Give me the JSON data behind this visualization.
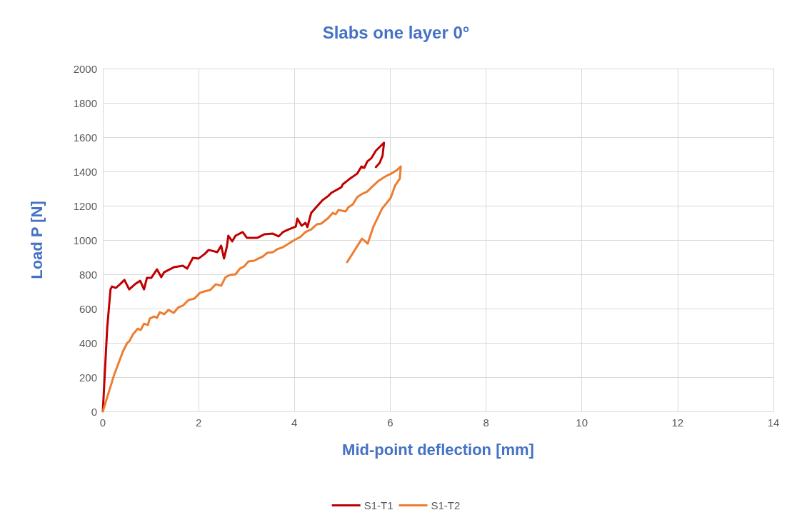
{
  "chart_data": {
    "type": "line",
    "title": "Slabs one layer 0°",
    "xlabel": "Mid-point deflection [mm]",
    "ylabel": "Load P [N]",
    "xlim": [
      0,
      14
    ],
    "xticks": [
      0,
      2,
      4,
      6,
      8,
      10,
      12,
      14
    ],
    "ylim": [
      0,
      2000
    ],
    "yticks": [
      0,
      200,
      400,
      600,
      800,
      1000,
      1200,
      1400,
      1600,
      1800,
      2000
    ],
    "grid": true,
    "legend": "bottom",
    "marker": "none",
    "line_style": "solid",
    "series": [
      {
        "name": "S1-T1",
        "color": "#c00000",
        "x": [
          0,
          0.09,
          0.16,
          0.19,
          0.27,
          0.36,
          0.45,
          0.55,
          0.69,
          0.78,
          0.86,
          0.92,
          1.01,
          1.13,
          1.22,
          1.28,
          1.49,
          1.67,
          1.76,
          1.88,
          2.0,
          2.12,
          2.21,
          2.39,
          2.47,
          2.53,
          2.59,
          2.62,
          2.7,
          2.77,
          2.92,
          3.01,
          3.22,
          3.37,
          3.55,
          3.67,
          3.76,
          3.88,
          4.03,
          4.06,
          4.15,
          4.23,
          4.27,
          4.35,
          4.47,
          4.59,
          4.71,
          4.77,
          4.98,
          5.01,
          5.16,
          5.31,
          5.4,
          5.46,
          5.52,
          5.61,
          5.7,
          5.82,
          5.87,
          5.84,
          5.78,
          5.7
        ],
        "values": [
          0,
          483,
          712,
          729,
          720,
          742,
          767,
          712,
          746,
          762,
          712,
          779,
          779,
          829,
          783,
          812,
          842,
          850,
          833,
          896,
          892,
          917,
          942,
          929,
          967,
          892,
          962,
          1025,
          992,
          1025,
          1046,
          1012,
          1012,
          1033,
          1037,
          1021,
          1046,
          1062,
          1079,
          1125,
          1083,
          1100,
          1075,
          1158,
          1196,
          1233,
          1258,
          1275,
          1308,
          1325,
          1358,
          1387,
          1429,
          1421,
          1458,
          1479,
          1521,
          1554,
          1567,
          1492,
          1450,
          1425
        ]
      },
      {
        "name": "S1-T2",
        "color": "#ed7d31",
        "x": [
          0,
          0.24,
          0.42,
          0.51,
          0.55,
          0.63,
          0.73,
          0.79,
          0.86,
          0.94,
          0.98,
          1.07,
          1.13,
          1.19,
          1.28,
          1.37,
          1.48,
          1.58,
          1.67,
          1.79,
          1.91,
          2.03,
          2.12,
          2.24,
          2.36,
          2.47,
          2.56,
          2.65,
          2.77,
          2.86,
          2.95,
          3.04,
          3.16,
          3.25,
          3.34,
          3.43,
          3.55,
          3.64,
          3.76,
          3.88,
          4.0,
          4.12,
          4.23,
          4.35,
          4.47,
          4.56,
          4.71,
          4.8,
          4.86,
          4.92,
          5.07,
          5.13,
          5.22,
          5.31,
          5.4,
          5.52,
          5.61,
          5.76,
          5.9,
          6.02,
          6.14,
          6.22,
          6.2,
          6.1,
          6.01,
          5.83,
          5.65,
          5.53,
          5.41,
          5.1
        ],
        "values": [
          0,
          217,
          350,
          400,
          408,
          450,
          483,
          475,
          512,
          504,
          542,
          554,
          546,
          579,
          567,
          592,
          575,
          608,
          617,
          650,
          658,
          692,
          700,
          708,
          742,
          733,
          783,
          796,
          800,
          833,
          846,
          875,
          879,
          892,
          904,
          925,
          929,
          946,
          958,
          979,
          1000,
          1017,
          1046,
          1062,
          1092,
          1096,
          1129,
          1158,
          1150,
          1175,
          1167,
          1192,
          1208,
          1250,
          1267,
          1283,
          1308,
          1346,
          1371,
          1387,
          1408,
          1429,
          1358,
          1317,
          1246,
          1183,
          1079,
          979,
          1008,
          871
        ]
      }
    ]
  }
}
